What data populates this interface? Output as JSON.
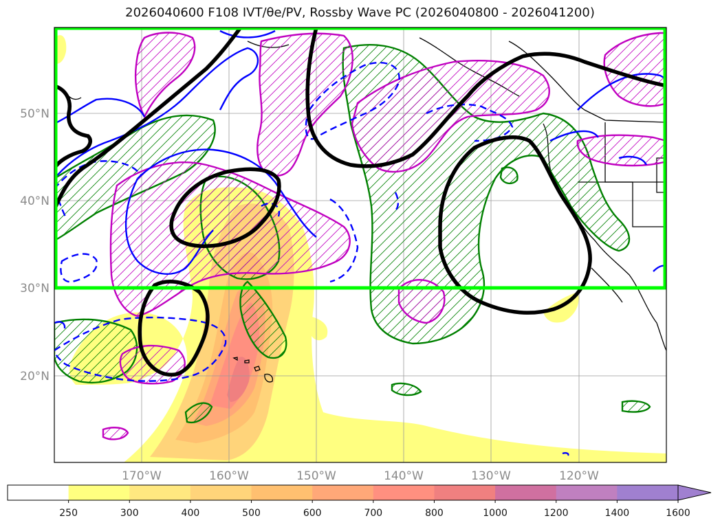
{
  "title": "2026040600 F108 IVT/θe/PV, Rossby Wave PC (2026040800 - 2026041200)",
  "lat_labels": [
    "50°N",
    "40°N",
    "30°N",
    "20°N"
  ],
  "lon_labels": [
    "170°W",
    "160°W",
    "150°W",
    "140°W",
    "130°W",
    "120°W"
  ],
  "colorbar": {
    "ticks": [
      "250",
      "300",
      "400",
      "500",
      "600",
      "700",
      "800",
      "1000",
      "1200",
      "1400",
      "1600"
    ],
    "colors": [
      "#ffffff",
      "#ffff80",
      "#ffe880",
      "#ffd47a",
      "#ffc070",
      "#ffa878",
      "#ff9080",
      "#f08080",
      "#d070a0",
      "#c080c0",
      "#a080d0"
    ],
    "extend": "max"
  },
  "colors": {
    "highlight_box": "#00ff00",
    "ivt_low": "#ffff80",
    "ivt_high": "#f08080",
    "black_contour": "#000000",
    "green_contour": "#008000",
    "magenta_contour": "#c000c0",
    "blue_contour": "#0000ff"
  },
  "map": {
    "lon_range": [
      "180°",
      "110°W"
    ],
    "lat_range": [
      "10°N",
      "60°N"
    ],
    "grid": true,
    "highlight_box_lat_range": [
      "30°N",
      "60°N"
    ]
  }
}
